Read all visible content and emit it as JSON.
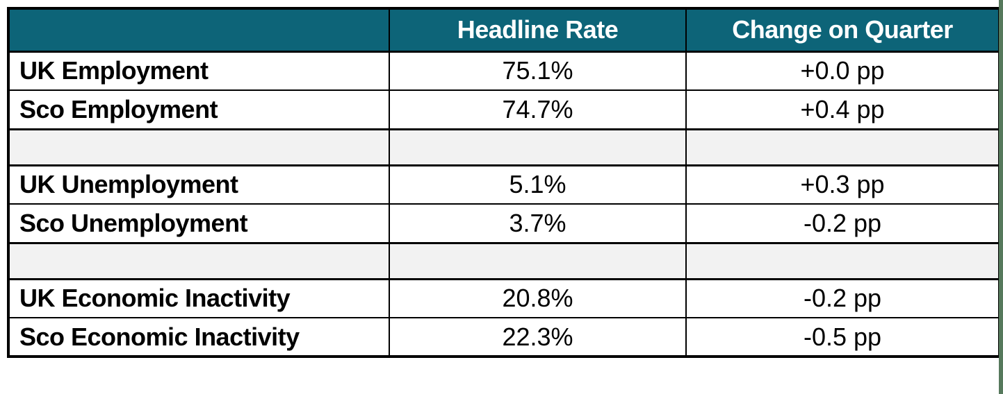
{
  "colors": {
    "header_bg": "#0d6478",
    "header_text": "#ffffff",
    "spacer_bg": "#f2f2f2",
    "border": "#000000",
    "right_strip": "#56795c"
  },
  "table": {
    "columns": [
      {
        "label": ""
      },
      {
        "label": "Headline Rate"
      },
      {
        "label": "Change on Quarter"
      }
    ],
    "rows": [
      {
        "type": "data",
        "label": "UK Employment",
        "headline_rate": "75.1%",
        "change_on_quarter": "+0.0 pp"
      },
      {
        "type": "data",
        "label": "Sco Employment",
        "headline_rate": "74.7%",
        "change_on_quarter": "+0.4 pp"
      },
      {
        "type": "spacer",
        "label": "",
        "headline_rate": "",
        "change_on_quarter": ""
      },
      {
        "type": "data",
        "label": "UK Unemployment",
        "headline_rate": "5.1%",
        "change_on_quarter": "+0.3 pp"
      },
      {
        "type": "data",
        "label": "Sco Unemployment",
        "headline_rate": "3.7%",
        "change_on_quarter": "-0.2 pp"
      },
      {
        "type": "spacer",
        "label": "",
        "headline_rate": "",
        "change_on_quarter": ""
      },
      {
        "type": "data",
        "label": "UK Economic Inactivity",
        "headline_rate": "20.8%",
        "change_on_quarter": "-0.2 pp"
      },
      {
        "type": "data",
        "label": "Sco Economic Inactivity",
        "headline_rate": "22.3%",
        "change_on_quarter": "-0.5 pp"
      }
    ]
  },
  "chart_data": {
    "type": "table",
    "title": "",
    "columns": [
      "",
      "Headline Rate",
      "Change on Quarter"
    ],
    "rows": [
      [
        "UK Employment",
        "75.1%",
        "+0.0 pp"
      ],
      [
        "Sco Employment",
        "74.7%",
        "+0.4 pp"
      ],
      [
        "",
        "",
        ""
      ],
      [
        "UK Unemployment",
        "5.1%",
        "+0.3 pp"
      ],
      [
        "Sco Unemployment",
        "3.7%",
        "-0.2 pp"
      ],
      [
        "",
        "",
        ""
      ],
      [
        "UK Economic Inactivity",
        "20.8%",
        "-0.2 pp"
      ],
      [
        "Sco Economic Inactivity",
        "22.3%",
        "-0.5 pp"
      ]
    ]
  }
}
